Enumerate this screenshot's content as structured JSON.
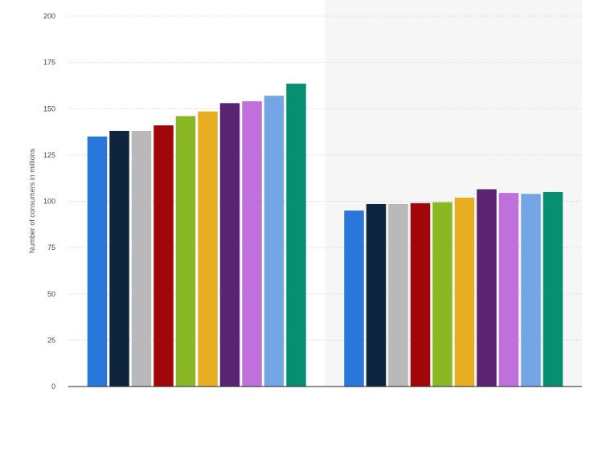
{
  "chart_data": {
    "type": "bar",
    "title": "",
    "xlabel": "",
    "ylabel": "Number of consumers in millions",
    "ylim": [
      0,
      200
    ],
    "yticks": [
      0,
      25,
      50,
      75,
      100,
      125,
      150,
      175,
      200
    ],
    "grid": true,
    "legend": "none",
    "categories": [
      "",
      ""
    ],
    "shaded_groups": [
      1
    ],
    "shade_color": "#f6f6f6",
    "series": [
      {
        "color": "#2a77dc",
        "values": [
          135,
          95
        ]
      },
      {
        "color": "#0f253f",
        "values": [
          138,
          98.5
        ]
      },
      {
        "color": "#b9b9b9",
        "values": [
          138,
          98.5
        ]
      },
      {
        "color": "#a0070a",
        "values": [
          141,
          99
        ]
      },
      {
        "color": "#8ab824",
        "values": [
          146,
          99.5
        ]
      },
      {
        "color": "#e8ae22",
        "values": [
          148.5,
          102
        ]
      },
      {
        "color": "#5b2473",
        "values": [
          153,
          106.5
        ]
      },
      {
        "color": "#c070da",
        "values": [
          154,
          104.5
        ]
      },
      {
        "color": "#74a5e4",
        "values": [
          157,
          104
        ]
      },
      {
        "color": "#078f72",
        "values": [
          163.5,
          105
        ]
      }
    ]
  }
}
